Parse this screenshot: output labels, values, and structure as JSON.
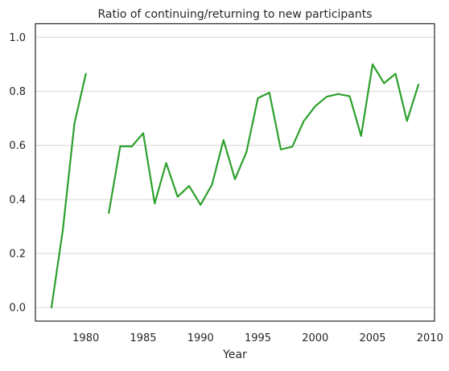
{
  "chart_data": {
    "type": "line",
    "title": "Ratio of continuing/returning to new participants",
    "xlabel": "Year",
    "ylabel": "",
    "xlim": [
      1975.6,
      2010.4
    ],
    "ylim": [
      -0.05,
      1.05
    ],
    "xticks": [
      1980,
      1985,
      1990,
      1995,
      2000,
      2005,
      2010
    ],
    "yticks": [
      0.0,
      0.2,
      0.4,
      0.6,
      0.8,
      1.0
    ],
    "xtick_labels": [
      "1980",
      "1985",
      "1990",
      "1995",
      "2000",
      "2005",
      "2010"
    ],
    "ytick_labels": [
      "0.0",
      "0.2",
      "0.4",
      "0.6",
      "0.8",
      "1.0"
    ],
    "grid": {
      "y": "on",
      "x": "off"
    },
    "series": [
      {
        "color": "#2ca02c",
        "segments": [
          {
            "x": [
              1977,
              1978,
              1979,
              1980
            ],
            "y": [
              0.0,
              0.29,
              0.68,
              0.865
            ]
          },
          {
            "x": [
              1982,
              1983,
              1984,
              1985,
              1986,
              1987,
              1988,
              1989,
              1990,
              1991,
              1992,
              1993,
              1994,
              1995,
              1996,
              1997,
              1998,
              1999,
              2000,
              2001,
              2002,
              2003,
              2004,
              2005,
              2006,
              2007,
              2008,
              2009
            ],
            "y": [
              0.35,
              0.597,
              0.596,
              0.645,
              0.385,
              0.535,
              0.41,
              0.45,
              0.38,
              0.455,
              0.62,
              0.475,
              0.575,
              0.775,
              0.795,
              0.585,
              0.595,
              0.69,
              0.745,
              0.78,
              0.79,
              0.782,
              0.635,
              0.9,
              0.83,
              0.865,
              0.69,
              0.825
            ]
          }
        ]
      }
    ]
  }
}
